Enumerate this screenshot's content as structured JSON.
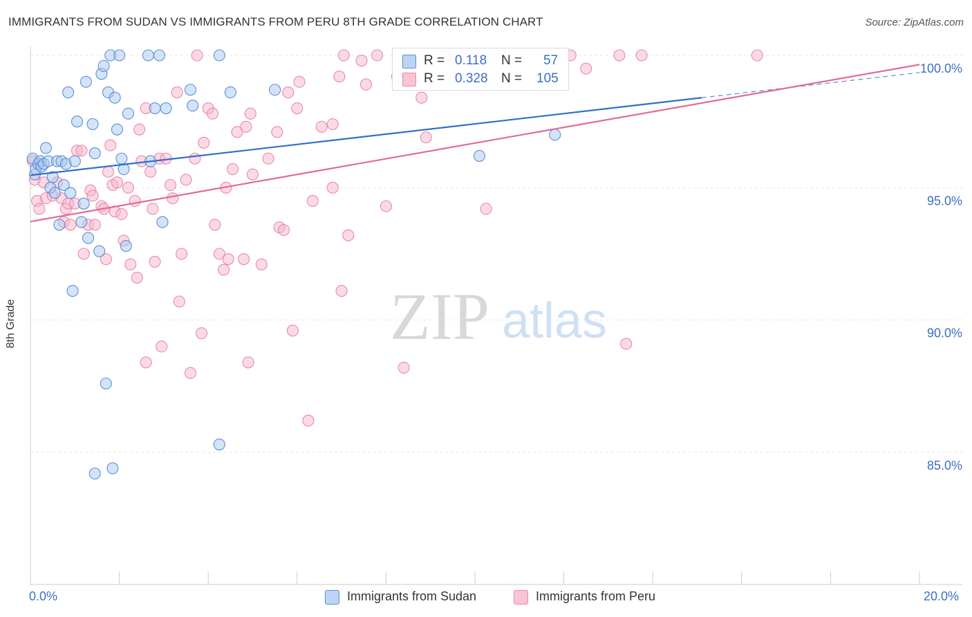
{
  "title": "IMMIGRANTS FROM SUDAN VS IMMIGRANTS FROM PERU 8TH GRADE CORRELATION CHART",
  "source": "Source: ZipAtlas.com",
  "watermark": {
    "zip": "ZIP",
    "atlas": "atlas"
  },
  "legend": {
    "sudan": {
      "r_label": "R =",
      "r_value": "0.118",
      "n_label": "N =",
      "n_value": "57"
    },
    "peru": {
      "r_label": "R =",
      "r_value": "0.328",
      "n_label": "N =",
      "n_value": "105"
    }
  },
  "x_tick_left": "0.0%",
  "x_tick_right": "20.0%",
  "colors": {
    "sudan_fill": "#a9c8f0",
    "sudan_stroke": "#5b8fd6",
    "sudan_line": "#2f6fcc",
    "peru_fill": "#f7b6cb",
    "peru_stroke": "#e889a8",
    "peru_line": "#e06b94",
    "tick_text": "#3a6fc4"
  },
  "chart_data": {
    "type": "scatter",
    "title": "IMMIGRANTS FROM SUDAN VS IMMIGRANTS FROM PERU 8TH GRADE CORRELATION CHART",
    "xlabel": "",
    "ylabel": "8th Grade",
    "xlim": [
      0,
      20
    ],
    "ylim": [
      80.5,
      100.7
    ],
    "y_ticks": [
      {
        "value": 100,
        "label": "100.0%"
      },
      {
        "value": 95,
        "label": "95.0%"
      },
      {
        "value": 90,
        "label": "90.0%"
      },
      {
        "value": 85,
        "label": "85.0%"
      }
    ],
    "x_tick_marks": [
      0,
      2,
      4,
      6,
      8,
      10,
      12,
      14,
      16,
      18,
      20
    ],
    "series": [
      {
        "name": "Immigrants from Sudan",
        "r": 0.118,
        "n": 57,
        "trend": {
          "x0": 0,
          "y0": 95.47,
          "x1": 15.1,
          "y1": 98.4,
          "dash_to_x": 20,
          "dash_to_y": 99.35
        },
        "points": [
          [
            0.05,
            96.1
          ],
          [
            0.1,
            95.5
          ],
          [
            0.12,
            95.7
          ],
          [
            0.18,
            95.9
          ],
          [
            0.22,
            96.0
          ],
          [
            0.25,
            95.8
          ],
          [
            0.3,
            95.9
          ],
          [
            0.35,
            96.5
          ],
          [
            0.4,
            96.0
          ],
          [
            0.45,
            95.0
          ],
          [
            0.5,
            95.4
          ],
          [
            0.55,
            94.8
          ],
          [
            0.6,
            96.0
          ],
          [
            0.65,
            93.6
          ],
          [
            0.7,
            96.0
          ],
          [
            0.75,
            95.1
          ],
          [
            0.8,
            95.9
          ],
          [
            0.85,
            98.6
          ],
          [
            0.9,
            94.8
          ],
          [
            0.95,
            91.1
          ],
          [
            1.0,
            96.0
          ],
          [
            1.05,
            97.5
          ],
          [
            1.15,
            93.7
          ],
          [
            1.2,
            94.4
          ],
          [
            1.25,
            99.0
          ],
          [
            1.3,
            93.1
          ],
          [
            1.4,
            97.4
          ],
          [
            1.45,
            96.3
          ],
          [
            1.55,
            92.6
          ],
          [
            1.6,
            99.3
          ],
          [
            1.65,
            99.6
          ],
          [
            1.7,
            87.6
          ],
          [
            1.75,
            98.6
          ],
          [
            1.8,
            100.0
          ],
          [
            1.85,
            84.4
          ],
          [
            1.9,
            98.4
          ],
          [
            1.95,
            97.2
          ],
          [
            2.0,
            100.0
          ],
          [
            2.05,
            96.1
          ],
          [
            2.1,
            95.7
          ],
          [
            2.15,
            92.8
          ],
          [
            2.2,
            97.8
          ],
          [
            1.45,
            84.2
          ],
          [
            2.65,
            100.0
          ],
          [
            2.7,
            96.0
          ],
          [
            2.8,
            98.0
          ],
          [
            2.9,
            100.0
          ],
          [
            2.97,
            93.7
          ],
          [
            3.05,
            98.0
          ],
          [
            3.6,
            98.7
          ],
          [
            3.65,
            98.1
          ],
          [
            4.25,
            100.0
          ],
          [
            4.5,
            98.6
          ],
          [
            4.25,
            85.3
          ],
          [
            5.5,
            98.7
          ],
          [
            10.1,
            96.2
          ],
          [
            11.8,
            97.0
          ]
        ]
      },
      {
        "name": "Immigrants from Peru",
        "r": 0.328,
        "n": 105,
        "trend": {
          "x0": 0,
          "y0": 93.72,
          "x1": 20,
          "y1": 99.65
        },
        "points": [
          [
            0.05,
            96.0
          ],
          [
            0.1,
            95.3
          ],
          [
            0.15,
            94.5
          ],
          [
            0.2,
            94.2
          ],
          [
            0.3,
            95.2
          ],
          [
            0.35,
            94.6
          ],
          [
            0.5,
            94.7
          ],
          [
            0.6,
            95.2
          ],
          [
            0.7,
            94.6
          ],
          [
            0.75,
            93.7
          ],
          [
            0.8,
            94.2
          ],
          [
            0.85,
            94.4
          ],
          [
            0.9,
            93.6
          ],
          [
            1.0,
            94.4
          ],
          [
            1.05,
            96.4
          ],
          [
            1.15,
            96.4
          ],
          [
            1.2,
            92.5
          ],
          [
            1.3,
            93.6
          ],
          [
            1.35,
            94.9
          ],
          [
            1.4,
            94.7
          ],
          [
            1.45,
            93.6
          ],
          [
            1.6,
            94.3
          ],
          [
            1.65,
            94.2
          ],
          [
            1.7,
            92.3
          ],
          [
            1.75,
            95.6
          ],
          [
            1.8,
            96.6
          ],
          [
            1.85,
            95.1
          ],
          [
            1.9,
            94.1
          ],
          [
            1.95,
            95.2
          ],
          [
            2.05,
            94.0
          ],
          [
            2.1,
            93.0
          ],
          [
            2.2,
            95.0
          ],
          [
            2.25,
            92.1
          ],
          [
            2.35,
            94.5
          ],
          [
            2.4,
            91.6
          ],
          [
            2.45,
            97.2
          ],
          [
            2.5,
            96.0
          ],
          [
            2.6,
            88.4
          ],
          [
            2.6,
            98.0
          ],
          [
            2.7,
            95.6
          ],
          [
            2.75,
            94.2
          ],
          [
            2.8,
            92.2
          ],
          [
            2.9,
            96.1
          ],
          [
            2.95,
            89.0
          ],
          [
            3.05,
            96.1
          ],
          [
            3.15,
            95.1
          ],
          [
            3.2,
            94.6
          ],
          [
            3.3,
            98.6
          ],
          [
            3.35,
            90.7
          ],
          [
            3.4,
            92.5
          ],
          [
            3.5,
            95.3
          ],
          [
            3.6,
            88.0
          ],
          [
            3.7,
            96.1
          ],
          [
            3.75,
            100.0
          ],
          [
            3.85,
            89.5
          ],
          [
            3.9,
            96.7
          ],
          [
            4.0,
            98.0
          ],
          [
            4.1,
            97.8
          ],
          [
            4.15,
            93.6
          ],
          [
            4.25,
            92.5
          ],
          [
            4.35,
            91.9
          ],
          [
            4.4,
            95.0
          ],
          [
            4.45,
            92.3
          ],
          [
            4.55,
            95.7
          ],
          [
            4.65,
            97.1
          ],
          [
            4.8,
            92.3
          ],
          [
            4.85,
            97.3
          ],
          [
            4.9,
            88.4
          ],
          [
            4.95,
            97.8
          ],
          [
            5.0,
            95.5
          ],
          [
            5.2,
            92.1
          ],
          [
            5.35,
            96.1
          ],
          [
            5.55,
            97.1
          ],
          [
            5.6,
            93.5
          ],
          [
            5.7,
            93.4
          ],
          [
            5.8,
            98.6
          ],
          [
            5.9,
            89.6
          ],
          [
            6.0,
            98.0
          ],
          [
            6.05,
            99.0
          ],
          [
            6.25,
            86.2
          ],
          [
            6.35,
            94.5
          ],
          [
            6.55,
            97.3
          ],
          [
            6.8,
            97.4
          ],
          [
            6.8,
            95.0
          ],
          [
            6.95,
            99.2
          ],
          [
            7.0,
            91.1
          ],
          [
            7.05,
            100.0
          ],
          [
            7.15,
            93.2
          ],
          [
            7.45,
            99.8
          ],
          [
            7.55,
            98.9
          ],
          [
            7.8,
            100.0
          ],
          [
            8.0,
            94.3
          ],
          [
            8.25,
            99.2
          ],
          [
            8.4,
            88.2
          ],
          [
            8.8,
            98.4
          ],
          [
            8.9,
            96.9
          ],
          [
            9.35,
            100.0
          ],
          [
            9.4,
            100.0
          ],
          [
            10.25,
            94.2
          ],
          [
            12.15,
            100.0
          ],
          [
            12.5,
            99.5
          ],
          [
            13.25,
            100.0
          ],
          [
            13.4,
            89.1
          ],
          [
            13.75,
            100.0
          ],
          [
            16.35,
            100.0
          ]
        ]
      }
    ]
  }
}
